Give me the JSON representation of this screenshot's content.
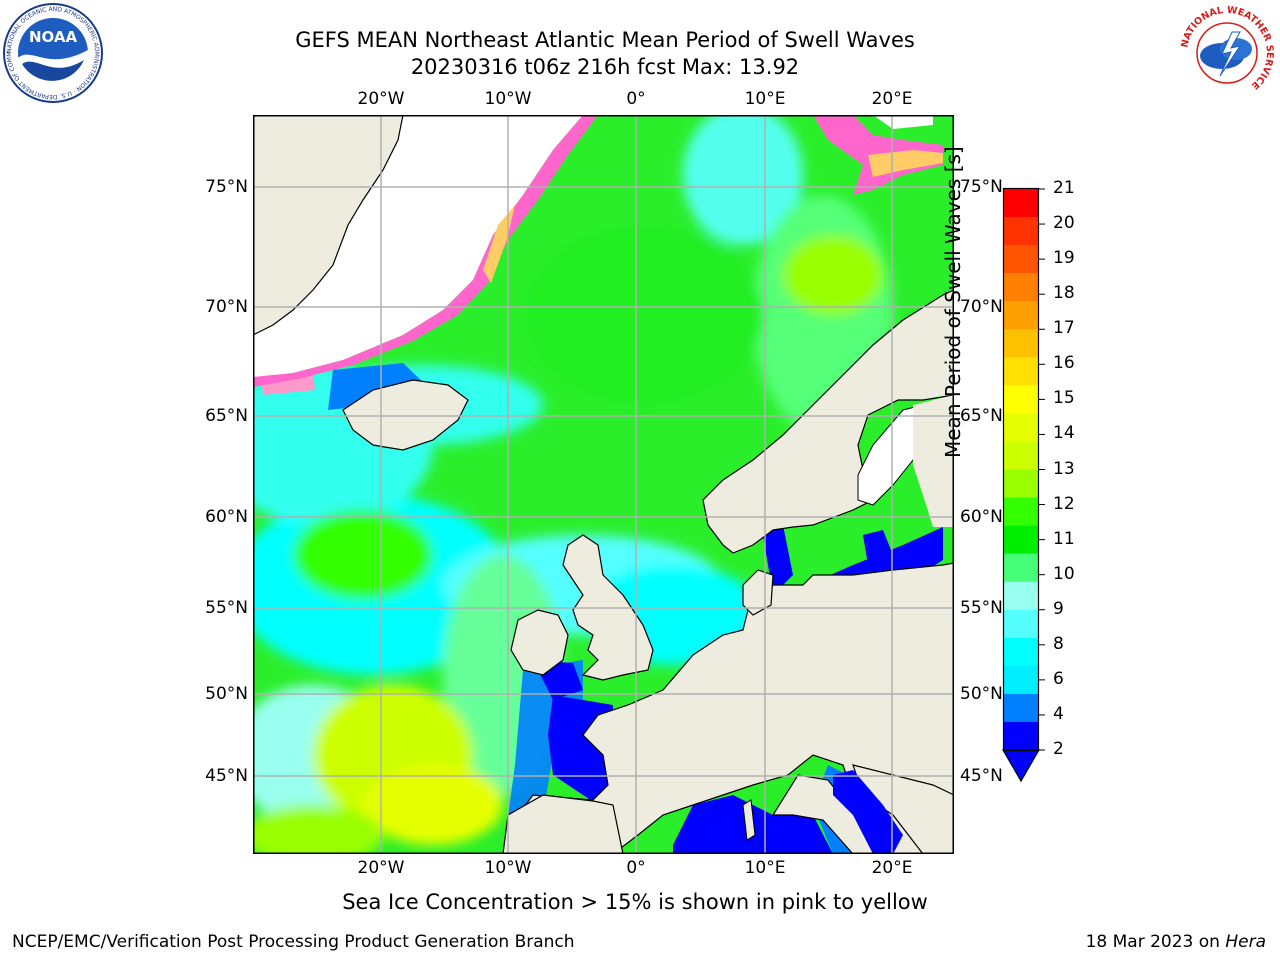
{
  "header": {
    "title_line1": "GEFS MEAN Northeast Atlantic Mean Period of Swell Waves",
    "title_line2": "20230316 t06z 216h fcst   Max: 13.92"
  },
  "map": {
    "lon_labels": [
      "20°W",
      "10°W",
      "0°",
      "10°E",
      "20°E"
    ],
    "lat_labels": [
      "75°N",
      "70°N",
      "65°N",
      "60°N",
      "55°N",
      "50°N",
      "45°N"
    ],
    "colors": {
      "land": "#eeecdf",
      "ice_free_white": "#ffffff",
      "grid": "#b0b0b0",
      "coast": "#000000"
    },
    "sea_ice_colors": [
      "#ff66cc",
      "#ff99bb",
      "#ffcc66"
    ]
  },
  "colorbar": {
    "label": "Mean Period of Swell Waves [s]",
    "ticks": [
      "21",
      "20",
      "19",
      "18",
      "17",
      "16",
      "15",
      "14",
      "13",
      "12",
      "11",
      "10",
      "9",
      "8",
      "6",
      "4",
      "2"
    ],
    "band_colors": [
      "#ff0000",
      "#ff3300",
      "#ff5500",
      "#ff8000",
      "#ffa000",
      "#ffc000",
      "#ffe000",
      "#ffff00",
      "#e6ff00",
      "#ccff00",
      "#99ff00",
      "#33ff00",
      "#00ee00",
      "#44ff77",
      "#99ffee",
      "#55ffff",
      "#00ffff",
      "#00eeff",
      "#0080ff",
      "#0000ff"
    ]
  },
  "caption": "Sea Ice Concentration > 15% is shown in pink to yellow",
  "footer": {
    "left": "NCEP/EMC/Verification Post Processing Product Generation Branch",
    "right_date": "18 Mar 2023 on ",
    "right_machine": "Hera"
  },
  "logos": {
    "noaa_text": "NOAA",
    "noaa_ring": "NATIONAL OCEANIC AND ATMOSPHERIC ADMINISTRATION · U.S. DEPARTMENT OF COMMERCE",
    "nws_ring": "NATIONAL WEATHER SERVICE"
  }
}
